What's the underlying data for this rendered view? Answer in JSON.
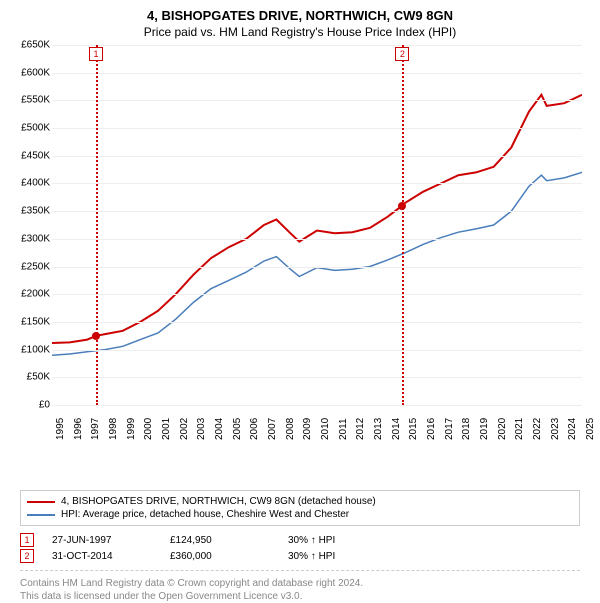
{
  "title": "4, BISHOPGATES DRIVE, NORTHWICH, CW9 8GN",
  "subtitle": "Price paid vs. HM Land Registry's House Price Index (HPI)",
  "chart": {
    "type": "line",
    "background_color": "#ffffff",
    "grid_color": "#eeeeee",
    "axis_color": "#444444",
    "label_fontsize": 10,
    "x_min": 1995,
    "x_max": 2025,
    "y_min": 0,
    "y_max": 650000,
    "y_ticks": [
      0,
      50000,
      100000,
      150000,
      200000,
      250000,
      300000,
      350000,
      400000,
      450000,
      500000,
      550000,
      600000,
      650000
    ],
    "y_tick_labels": [
      "£0",
      "£50K",
      "£100K",
      "£150K",
      "£200K",
      "£250K",
      "£300K",
      "£350K",
      "£400K",
      "£450K",
      "£500K",
      "£550K",
      "£600K",
      "£650K"
    ],
    "x_ticks": [
      1995,
      1996,
      1997,
      1998,
      1999,
      2000,
      2001,
      2002,
      2003,
      2004,
      2005,
      2006,
      2007,
      2008,
      2009,
      2010,
      2011,
      2012,
      2013,
      2014,
      2015,
      2016,
      2017,
      2018,
      2019,
      2020,
      2021,
      2022,
      2023,
      2024,
      2025
    ],
    "series": [
      {
        "name": "property",
        "label": "4, BISHOPGATES DRIVE, NORTHWICH, CW9 8GN (detached house)",
        "color": "#cc0000",
        "line_width": 2,
        "data": [
          [
            1995,
            112000
          ],
          [
            1996,
            113000
          ],
          [
            1997,
            118000
          ],
          [
            1997.5,
            124950
          ],
          [
            1998,
            128000
          ],
          [
            1999,
            134000
          ],
          [
            2000,
            150000
          ],
          [
            2001,
            170000
          ],
          [
            2002,
            200000
          ],
          [
            2003,
            235000
          ],
          [
            2004,
            265000
          ],
          [
            2005,
            285000
          ],
          [
            2006,
            300000
          ],
          [
            2007,
            325000
          ],
          [
            2007.7,
            335000
          ],
          [
            2008.5,
            310000
          ],
          [
            2009,
            295000
          ],
          [
            2010,
            315000
          ],
          [
            2011,
            310000
          ],
          [
            2012,
            312000
          ],
          [
            2013,
            320000
          ],
          [
            2014,
            340000
          ],
          [
            2014.83,
            360000
          ],
          [
            2015,
            365000
          ],
          [
            2016,
            385000
          ],
          [
            2017,
            400000
          ],
          [
            2018,
            415000
          ],
          [
            2019,
            420000
          ],
          [
            2020,
            430000
          ],
          [
            2021,
            465000
          ],
          [
            2022,
            530000
          ],
          [
            2022.7,
            560000
          ],
          [
            2023,
            540000
          ],
          [
            2024,
            545000
          ],
          [
            2025,
            560000
          ]
        ]
      },
      {
        "name": "hpi",
        "label": "HPI: Average price, detached house, Cheshire West and Chester",
        "color": "#4a7ebb",
        "line_width": 1.5,
        "data": [
          [
            1995,
            90000
          ],
          [
            1996,
            92000
          ],
          [
            1997,
            96000
          ],
          [
            1998,
            100000
          ],
          [
            1999,
            106000
          ],
          [
            2000,
            118000
          ],
          [
            2001,
            130000
          ],
          [
            2002,
            155000
          ],
          [
            2003,
            185000
          ],
          [
            2004,
            210000
          ],
          [
            2005,
            225000
          ],
          [
            2006,
            240000
          ],
          [
            2007,
            260000
          ],
          [
            2007.7,
            268000
          ],
          [
            2008.5,
            245000
          ],
          [
            2009,
            232000
          ],
          [
            2010,
            248000
          ],
          [
            2011,
            243000
          ],
          [
            2012,
            245000
          ],
          [
            2013,
            250000
          ],
          [
            2014,
            262000
          ],
          [
            2015,
            275000
          ],
          [
            2016,
            290000
          ],
          [
            2017,
            302000
          ],
          [
            2018,
            312000
          ],
          [
            2019,
            318000
          ],
          [
            2020,
            325000
          ],
          [
            2021,
            350000
          ],
          [
            2022,
            395000
          ],
          [
            2022.7,
            415000
          ],
          [
            2023,
            405000
          ],
          [
            2024,
            410000
          ],
          [
            2025,
            420000
          ]
        ]
      }
    ],
    "sale_markers": [
      {
        "n": "1",
        "x": 1997.49,
        "color": "#cc0000",
        "dot_y": 124950
      },
      {
        "n": "2",
        "x": 2014.83,
        "color": "#cc0000",
        "dot_y": 360000
      }
    ]
  },
  "sales_table": {
    "rows": [
      {
        "n": "1",
        "date": "27-JUN-1997",
        "price": "£124,950",
        "delta": "30% ↑ HPI",
        "color": "#cc0000"
      },
      {
        "n": "2",
        "date": "31-OCT-2014",
        "price": "£360,000",
        "delta": "30% ↑ HPI",
        "color": "#cc0000"
      }
    ]
  },
  "footer": {
    "line1": "Contains HM Land Registry data © Crown copyright and database right 2024.",
    "line2": "This data is licensed under the Open Government Licence v3.0."
  }
}
